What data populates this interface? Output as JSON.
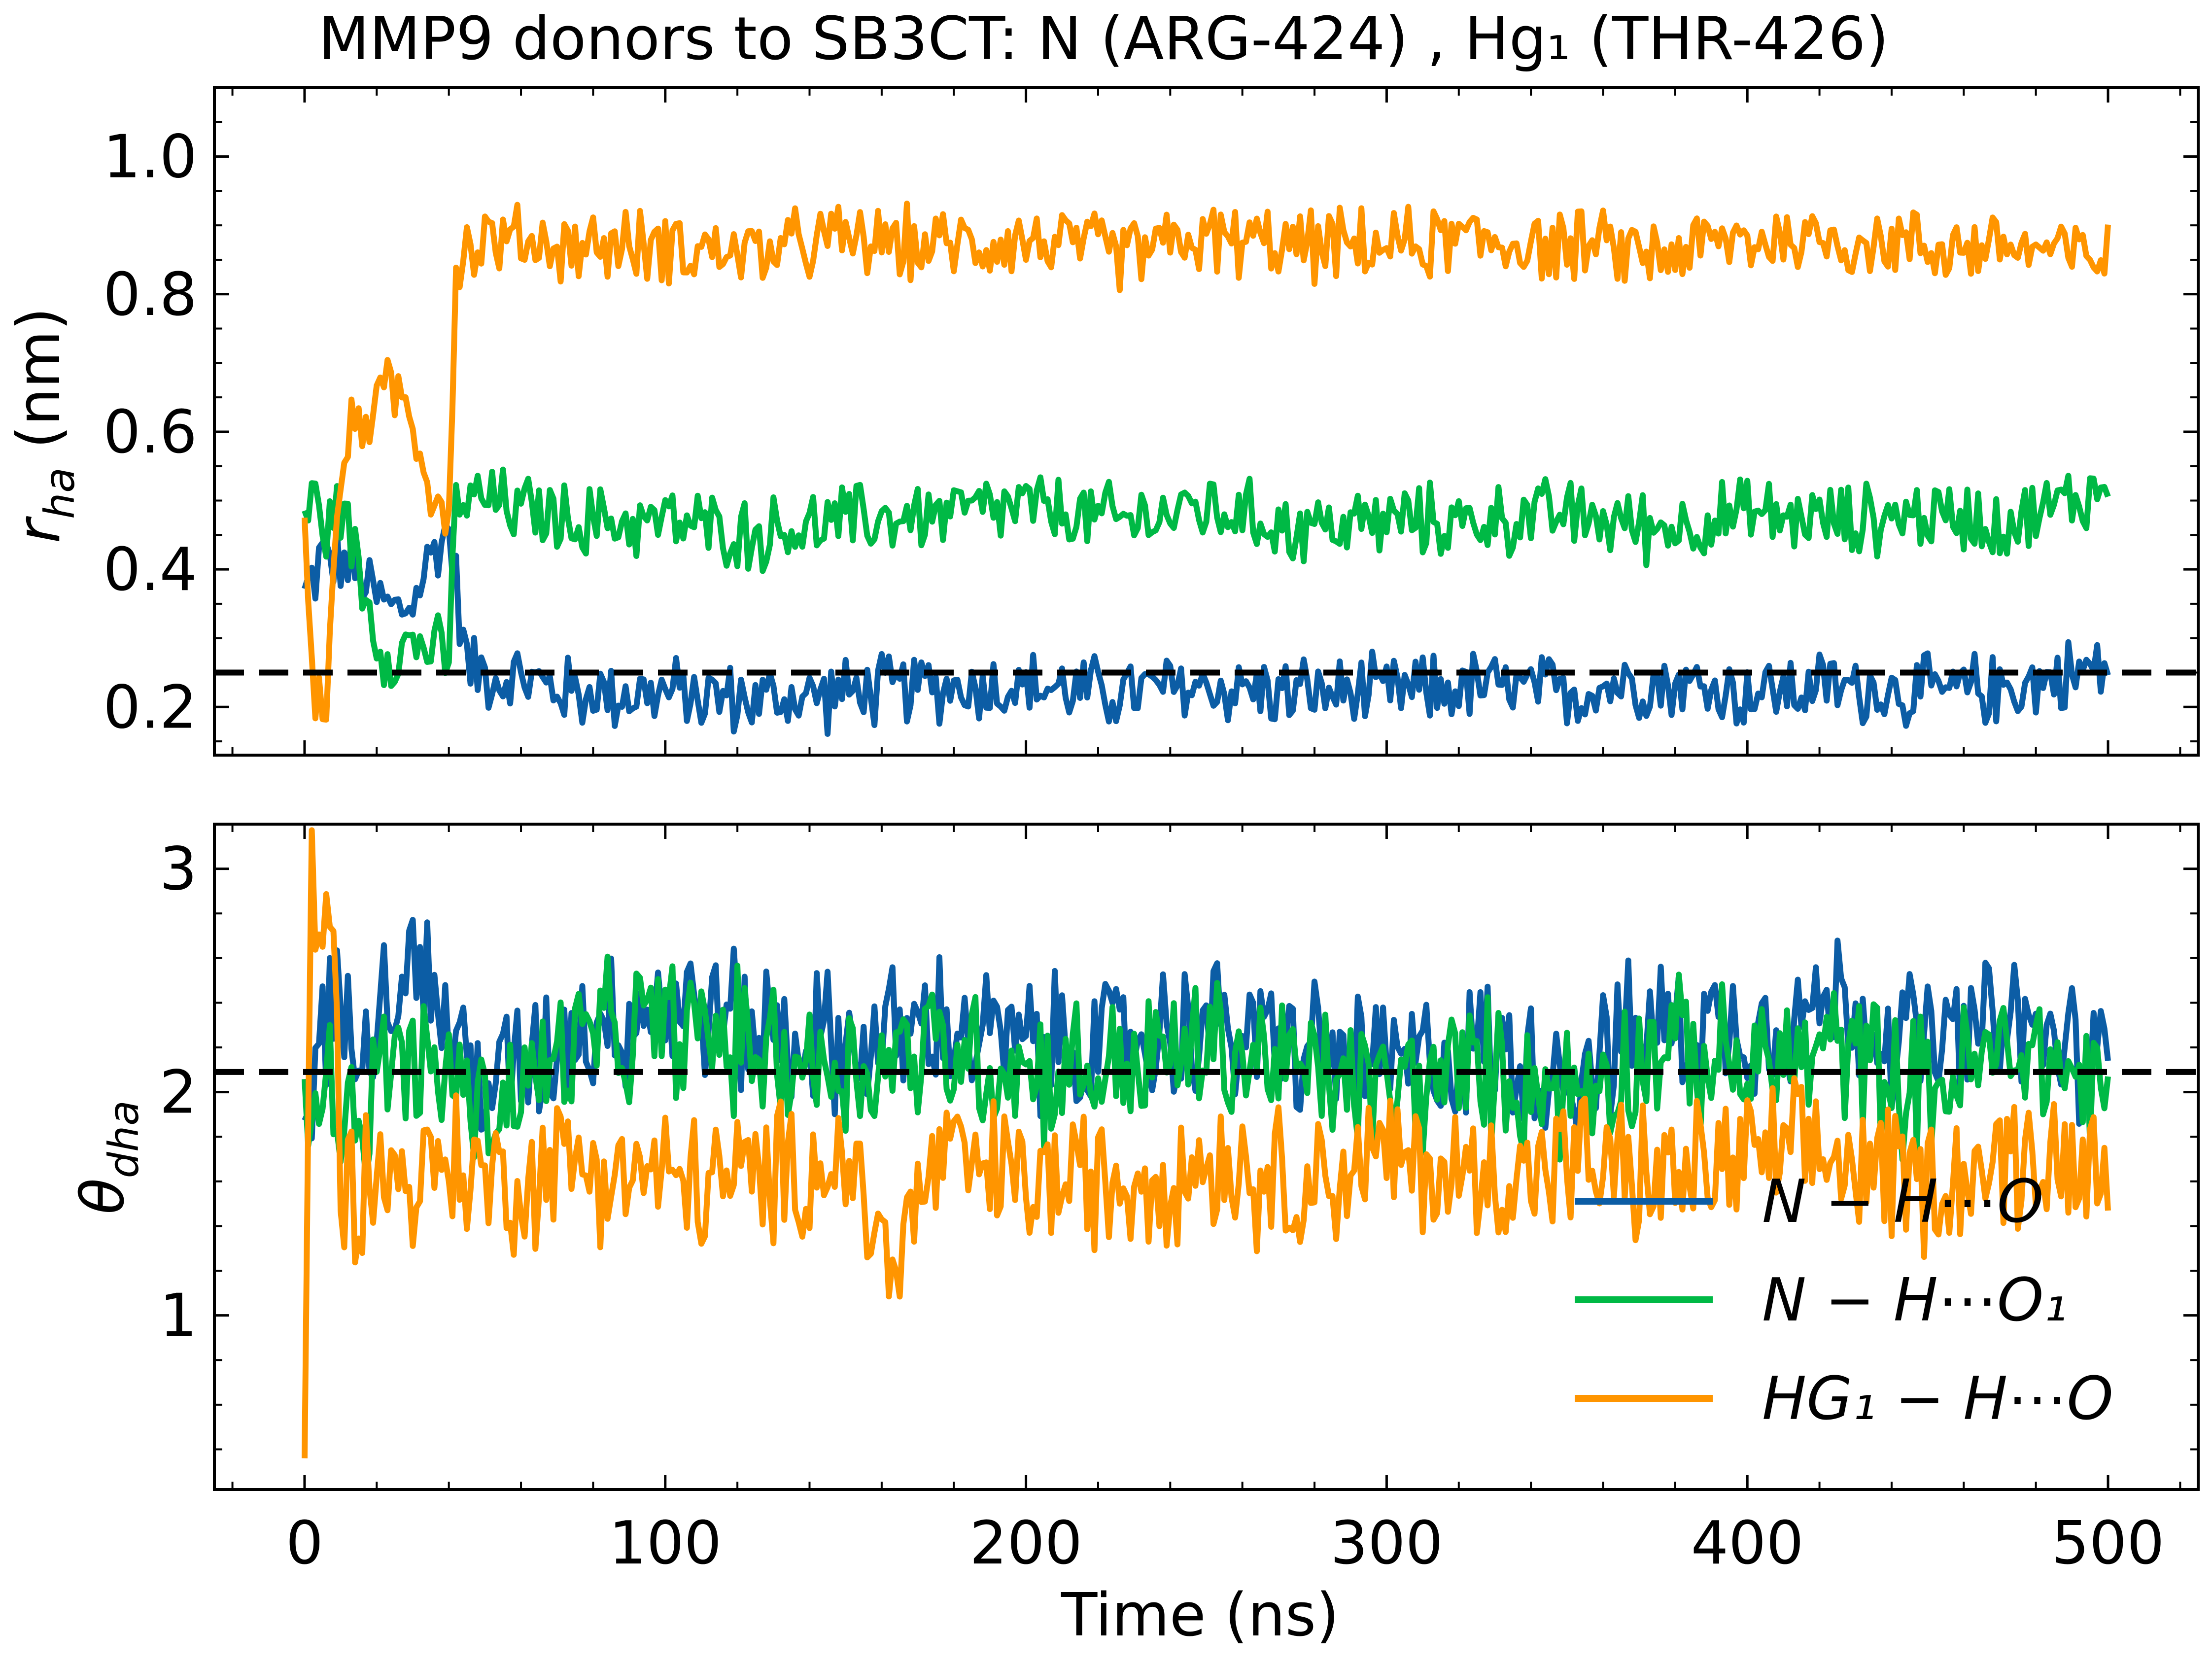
{
  "figure": {
    "title": "MMP9 donors to SB3CT: N (ARG-424) , Hg₁ (THR-426)",
    "legend": {
      "placement": "lower-right of bottom panel",
      "entries": [
        {
          "label": "N − H⋯O",
          "color": "#0c5da5"
        },
        {
          "label": "N − H⋯O₁",
          "color": "#00b945"
        },
        {
          "label": "HG₁ − H⋯O",
          "color": "#ff9500"
        }
      ]
    }
  },
  "chart_data": [
    {
      "type": "line",
      "panel": "top",
      "title": "MMP9 donors to SB3CT: N (ARG-424) , Hg₁ (THR-426)",
      "xlabel": "",
      "ylabel": "r_ha (nm)",
      "ylabel_display": {
        "var": "r",
        "sub": "ha",
        "unit": " (nm)"
      },
      "xlim": [
        -25,
        525
      ],
      "ylim": [
        0.13,
        1.1
      ],
      "yticks": [
        0.2,
        0.4,
        0.6,
        0.8,
        1.0
      ],
      "ytick_labels": [
        "0.2",
        "0.4",
        "0.6",
        "0.8",
        "1.0"
      ],
      "xticks": [
        0,
        100,
        200,
        300,
        400,
        500
      ],
      "grid": false,
      "threshold": {
        "y": 0.25,
        "style": "dashed",
        "color": "#000000"
      },
      "series": [
        {
          "name": "N − H⋯O",
          "color": "#0c5da5",
          "x": [
            0,
            5,
            10,
            15,
            20,
            25,
            30,
            35,
            40,
            45,
            50,
            60,
            75,
            100,
            125,
            150,
            175,
            200,
            225,
            250,
            275,
            300,
            325,
            350,
            370,
            400,
            425,
            450,
            475,
            500
          ],
          "y": [
            0.36,
            0.42,
            0.41,
            0.39,
            0.36,
            0.34,
            0.35,
            0.42,
            0.46,
            0.26,
            0.25,
            0.24,
            0.22,
            0.22,
            0.21,
            0.22,
            0.23,
            0.23,
            0.22,
            0.23,
            0.22,
            0.22,
            0.23,
            0.22,
            0.24,
            0.22,
            0.23,
            0.22,
            0.23,
            0.26
          ]
        },
        {
          "name": "N − H⋯O₁",
          "color": "#00b945",
          "x": [
            0,
            3,
            6,
            10,
            15,
            20,
            25,
            30,
            35,
            40,
            42,
            50,
            75,
            100,
            125,
            150,
            175,
            200,
            225,
            250,
            275,
            300,
            325,
            350,
            375,
            400,
            425,
            450,
            475,
            500
          ],
          "y": [
            0.48,
            0.5,
            0.45,
            0.5,
            0.4,
            0.3,
            0.27,
            0.3,
            0.28,
            0.27,
            0.5,
            0.5,
            0.47,
            0.47,
            0.45,
            0.47,
            0.48,
            0.49,
            0.47,
            0.49,
            0.46,
            0.47,
            0.47,
            0.48,
            0.46,
            0.48,
            0.47,
            0.48,
            0.47,
            0.52
          ]
        },
        {
          "name": "HG₁ − H⋯O",
          "color": "#ff9500",
          "x": [
            0,
            3,
            6,
            10,
            15,
            20,
            25,
            30,
            35,
            40,
            42,
            50,
            75,
            100,
            125,
            150,
            175,
            200,
            225,
            250,
            275,
            300,
            325,
            350,
            375,
            400,
            425,
            450,
            475,
            500
          ],
          "y": [
            0.45,
            0.22,
            0.2,
            0.55,
            0.62,
            0.64,
            0.66,
            0.62,
            0.52,
            0.48,
            0.85,
            0.88,
            0.87,
            0.87,
            0.86,
            0.88,
            0.87,
            0.88,
            0.86,
            0.88,
            0.87,
            0.87,
            0.88,
            0.87,
            0.86,
            0.88,
            0.88,
            0.87,
            0.87,
            0.85
          ]
        }
      ]
    },
    {
      "type": "line",
      "panel": "bottom",
      "xlabel": "Time (ns)",
      "ylabel": "θ_dha",
      "ylabel_display": {
        "var": "θ",
        "sub": "dha",
        "unit": ""
      },
      "xlim": [
        -25,
        525
      ],
      "ylim": [
        0.22,
        3.2
      ],
      "yticks": [
        1,
        2,
        3
      ],
      "ytick_labels": [
        "1",
        "2",
        "3"
      ],
      "xticks": [
        0,
        100,
        200,
        300,
        400,
        500
      ],
      "xtick_labels": [
        "0",
        "100",
        "200",
        "300",
        "400",
        "500"
      ],
      "grid": false,
      "threshold": {
        "y": 2.09,
        "style": "dashed",
        "color": "#000000"
      },
      "series": [
        {
          "name": "N − H⋯O",
          "color": "#0c5da5",
          "x": [
            0,
            5,
            10,
            15,
            20,
            25,
            30,
            40,
            50,
            75,
            100,
            125,
            150,
            175,
            200,
            225,
            250,
            275,
            300,
            325,
            350,
            375,
            400,
            425,
            450,
            475,
            500
          ],
          "y": [
            1.8,
            2.4,
            2.3,
            2.4,
            2.4,
            2.5,
            2.6,
            2.3,
            2.0,
            2.3,
            2.4,
            2.3,
            2.2,
            2.3,
            2.2,
            2.2,
            2.3,
            2.2,
            2.1,
            2.2,
            2.1,
            2.3,
            2.3,
            2.4,
            2.2,
            2.3,
            2.1
          ]
        },
        {
          "name": "N − H⋯O₁",
          "color": "#00b945",
          "x": [
            0,
            5,
            10,
            15,
            20,
            25,
            30,
            40,
            50,
            75,
            100,
            125,
            150,
            175,
            200,
            225,
            250,
            275,
            300,
            325,
            350,
            375,
            400,
            425,
            450,
            475,
            500
          ],
          "y": [
            2.0,
            2.2,
            1.9,
            1.9,
            2.0,
            2.2,
            2.1,
            2.1,
            1.9,
            2.2,
            2.3,
            2.2,
            2.1,
            2.2,
            2.1,
            2.1,
            2.2,
            2.1,
            2.0,
            2.1,
            2.0,
            2.2,
            2.1,
            2.2,
            2.0,
            2.2,
            2.0
          ]
        },
        {
          "name": "HG₁ − H⋯O",
          "color": "#ff9500",
          "x": [
            0,
            2,
            4,
            6,
            8,
            10,
            15,
            20,
            25,
            30,
            40,
            50,
            60,
            75,
            100,
            125,
            150,
            163,
            175,
            200,
            225,
            250,
            275,
            300,
            325,
            350,
            375,
            400,
            425,
            450,
            475,
            500
          ],
          "y": [
            0.35,
            3.0,
            2.6,
            2.9,
            2.7,
            1.6,
            1.6,
            1.7,
            1.6,
            1.6,
            1.7,
            1.6,
            1.6,
            1.7,
            1.6,
            1.6,
            1.7,
            1.2,
            1.7,
            1.6,
            1.6,
            1.7,
            1.6,
            1.7,
            1.6,
            1.7,
            1.6,
            1.7,
            1.7,
            1.6,
            1.7,
            1.7
          ]
        }
      ]
    }
  ]
}
